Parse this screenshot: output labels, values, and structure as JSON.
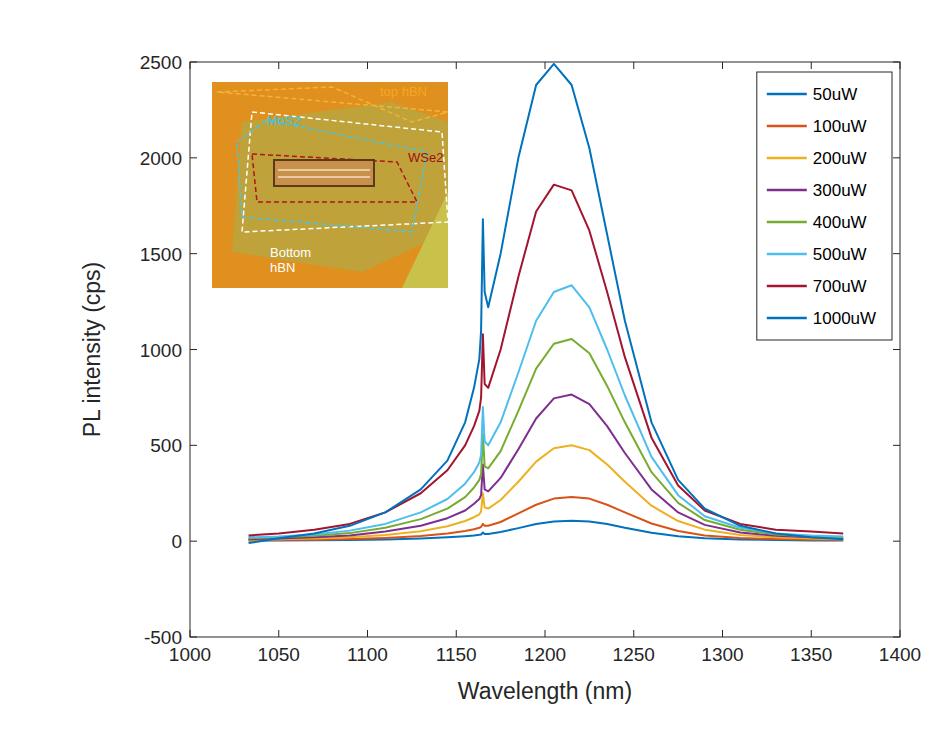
{
  "chart_data": {
    "type": "line",
    "x_label": "Wavelength (nm)",
    "y_label": "PL intensity (cps)",
    "xlim": [
      1000,
      1400
    ],
    "xticks": [
      1000,
      1050,
      1100,
      1150,
      1200,
      1250,
      1300,
      1350,
      1400
    ],
    "ylim": [
      -500,
      2500
    ],
    "yticks": [
      -500,
      0,
      500,
      1000,
      1500,
      2000,
      2500
    ],
    "grid": false,
    "legend": "upper right",
    "inset_labels": [
      "top hBN",
      "MoS2",
      "WSe2",
      "Bottom hBN"
    ],
    "x": [
      1033,
      1050,
      1070,
      1090,
      1110,
      1130,
      1145,
      1155,
      1160,
      1163,
      1164,
      1165,
      1166,
      1168,
      1175,
      1185,
      1195,
      1205,
      1215,
      1225,
      1235,
      1245,
      1260,
      1275,
      1290,
      1310,
      1330,
      1350,
      1368
    ],
    "series": [
      {
        "name": "50uW",
        "color": "#0072BD",
        "values": [
          3,
          4,
          5,
          6,
          9,
          14,
          20,
          26,
          30,
          33,
          35,
          45,
          37,
          37,
          48,
          68,
          90,
          103,
          106,
          103,
          90,
          70,
          44,
          26,
          15,
          9,
          6,
          4,
          3
        ]
      },
      {
        "name": "100uW",
        "color": "#D95319",
        "values": [
          5,
          6,
          8,
          11,
          17,
          27,
          40,
          53,
          62,
          70,
          75,
          90,
          80,
          80,
          100,
          145,
          190,
          222,
          230,
          222,
          190,
          150,
          92,
          53,
          30,
          17,
          11,
          8,
          6
        ]
      },
      {
        "name": "200uW",
        "color": "#EDB120",
        "values": [
          8,
          10,
          14,
          20,
          32,
          52,
          78,
          105,
          125,
          140,
          155,
          250,
          175,
          170,
          215,
          310,
          415,
          485,
          500,
          475,
          400,
          310,
          185,
          105,
          60,
          32,
          20,
          14,
          10
        ]
      },
      {
        "name": "300uW",
        "color": "#7E2F8E",
        "values": [
          10,
          14,
          20,
          30,
          50,
          80,
          120,
          160,
          195,
          220,
          240,
          400,
          270,
          260,
          330,
          480,
          640,
          745,
          765,
          715,
          600,
          460,
          270,
          150,
          85,
          45,
          28,
          20,
          15
        ]
      },
      {
        "name": "400uW",
        "color": "#77AC30",
        "values": [
          15,
          20,
          28,
          42,
          70,
          115,
          170,
          230,
          280,
          320,
          350,
          560,
          390,
          380,
          470,
          680,
          900,
          1030,
          1055,
          980,
          810,
          620,
          360,
          200,
          110,
          60,
          35,
          25,
          20
        ]
      },
      {
        "name": "500uW",
        "color": "#4DBEEE",
        "values": [
          20,
          25,
          35,
          55,
          90,
          150,
          220,
          300,
          360,
          410,
          450,
          700,
          520,
          500,
          620,
          880,
          1150,
          1300,
          1335,
          1220,
          1000,
          760,
          440,
          240,
          130,
          70,
          40,
          30,
          25
        ]
      },
      {
        "name": "700uW",
        "color": "#A2142F",
        "values": [
          30,
          40,
          60,
          90,
          150,
          250,
          370,
          500,
          600,
          680,
          750,
          1080,
          820,
          800,
          1000,
          1380,
          1720,
          1860,
          1830,
          1620,
          1300,
          960,
          540,
          290,
          160,
          90,
          60,
          50,
          40
        ]
      },
      {
        "name": "1000uW",
        "color": "#0072BD",
        "values": [
          -10,
          15,
          40,
          80,
          150,
          270,
          420,
          620,
          800,
          950,
          1100,
          1680,
          1300,
          1220,
          1500,
          2000,
          2380,
          2490,
          2380,
          2050,
          1600,
          1150,
          620,
          320,
          170,
          80,
          40,
          20,
          10
        ]
      }
    ]
  }
}
